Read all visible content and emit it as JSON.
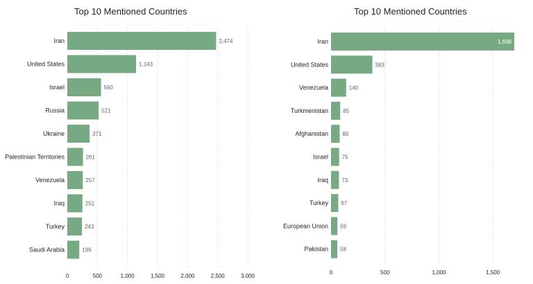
{
  "chart_data": [
    {
      "type": "bar",
      "orientation": "horizontal",
      "title": "Top 10 Mentioned Countries",
      "categories": [
        "Iran",
        "United States",
        "Israel",
        "Russia",
        "Ukraine",
        "Palestinian Territories",
        "Venezuela",
        "Iraq",
        "Turkey",
        "Saudi Arabia"
      ],
      "values": [
        2474,
        1143,
        560,
        521,
        371,
        261,
        257,
        251,
        243,
        199
      ],
      "value_labels": [
        "2,474",
        "1,143",
        "560",
        "521",
        "371",
        "261",
        "257",
        "251",
        "243",
        "199"
      ],
      "xlim": [
        0,
        3000
      ],
      "xticks": [
        0,
        500,
        1000,
        1500,
        2000,
        2500,
        3000
      ],
      "xtick_labels": [
        "0",
        "500",
        "1,000",
        "1,500",
        "2,000",
        "2,500",
        "3,000"
      ],
      "grid": true,
      "color": "#77aa82"
    },
    {
      "type": "bar",
      "orientation": "horizontal",
      "title": "Top 10 Mentioned Countries",
      "categories": [
        "Iran",
        "United States",
        "Venezuela",
        "Turkmenistan",
        "Afghanistan",
        "Israel",
        "Iraq",
        "Turkey",
        "European Union",
        "Pakistan"
      ],
      "values": [
        1698,
        383,
        140,
        85,
        80,
        75,
        73,
        67,
        59,
        58
      ],
      "value_labels": [
        "1,698",
        "383",
        "140",
        "85",
        "80",
        "75",
        "73",
        "67",
        "59",
        "58"
      ],
      "xlim": [
        0,
        1698
      ],
      "xticks": [
        0,
        500,
        1000,
        1500
      ],
      "xtick_labels": [
        "0",
        "500",
        "1,000",
        "1,500"
      ],
      "grid": true,
      "color": "#77aa82"
    }
  ]
}
